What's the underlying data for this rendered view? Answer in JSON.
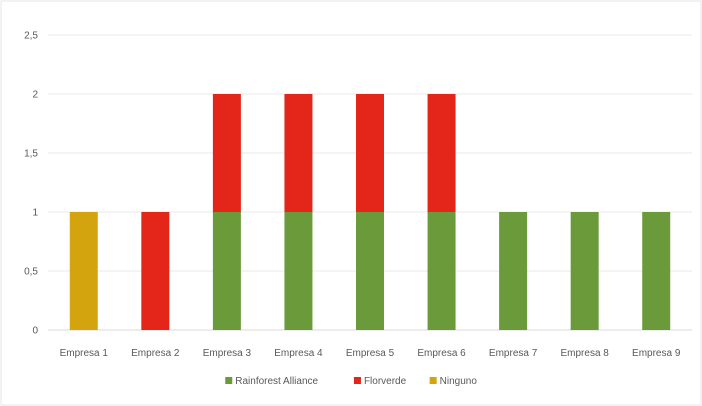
{
  "chart_data": {
    "type": "bar",
    "stacked": true,
    "categories": [
      "Empresa 1",
      "Empresa 2",
      "Empresa 3",
      "Empresa 4",
      "Empresa 5",
      "Empresa 6",
      "Empresa 7",
      "Empresa 8",
      "Empresa 9"
    ],
    "series": [
      {
        "name": "Rainforest Alliance",
        "color": "#6b9a3b",
        "values": [
          0,
          0,
          1,
          1,
          1,
          1,
          1,
          1,
          1
        ]
      },
      {
        "name": "Florverde",
        "color": "#e4261a",
        "values": [
          0,
          1,
          1,
          1,
          1,
          1,
          0,
          0,
          0
        ]
      },
      {
        "name": "Ninguno",
        "color": "#d4a40f",
        "values": [
          1,
          0,
          0,
          0,
          0,
          0,
          0,
          0,
          0
        ]
      }
    ],
    "ylim": [
      0,
      2.5
    ],
    "yticks": [
      "0",
      "0,5",
      "1",
      "1,5",
      "2",
      "2,5"
    ],
    "ytick_values": [
      0,
      0.5,
      1,
      1.5,
      2,
      2.5
    ],
    "grid": true,
    "legend_position": "bottom",
    "title": "",
    "xlabel": "",
    "ylabel": ""
  }
}
